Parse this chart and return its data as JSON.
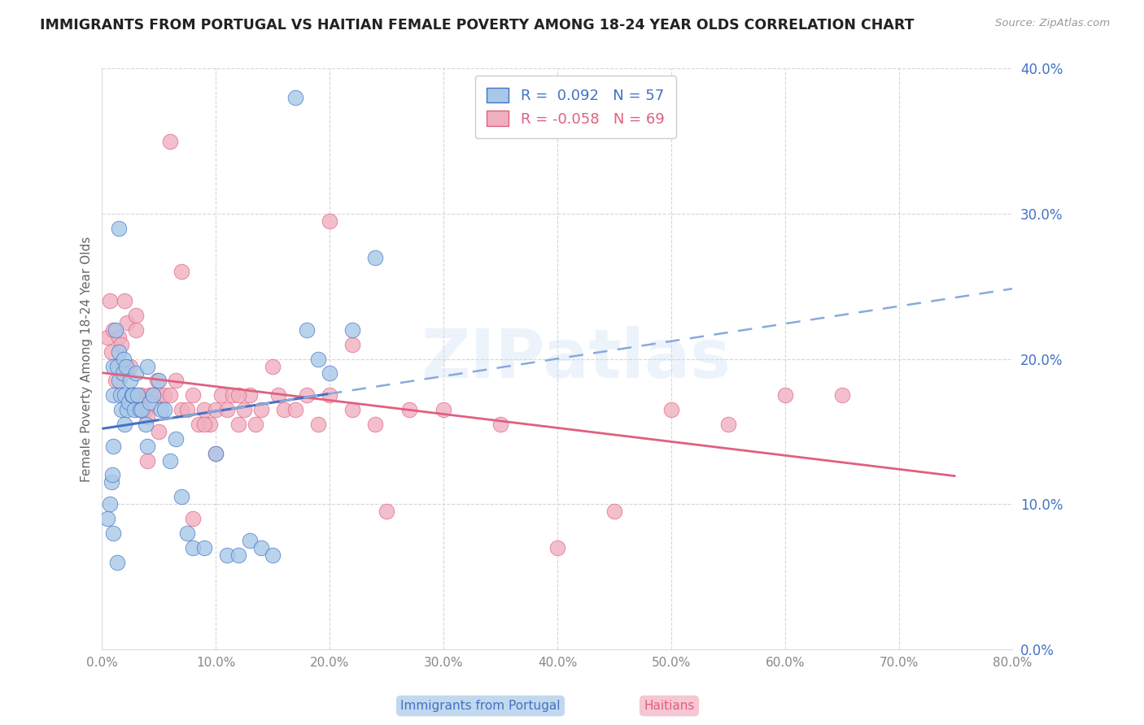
{
  "title": "IMMIGRANTS FROM PORTUGAL VS HAITIAN FEMALE POVERTY AMONG 18-24 YEAR OLDS CORRELATION CHART",
  "source": "Source: ZipAtlas.com",
  "ylabel": "Female Poverty Among 18-24 Year Olds",
  "R_portugal": 0.092,
  "N_portugal": 57,
  "R_haitian": -0.058,
  "N_haitian": 69,
  "xlim": [
    0.0,
    0.8
  ],
  "ylim": [
    0.0,
    0.4
  ],
  "xticks": [
    0.0,
    0.1,
    0.2,
    0.3,
    0.4,
    0.5,
    0.6,
    0.7,
    0.8
  ],
  "yticks": [
    0.0,
    0.1,
    0.2,
    0.3,
    0.4
  ],
  "color_portugal": "#a8c8e8",
  "color_haitian": "#f0b0c0",
  "line_portugal_solid": "#4472c4",
  "line_portugal_dashed": "#88aadd",
  "line_haitian": "#e06080",
  "watermark": "ZIPatlas",
  "background_color": "#ffffff",
  "portugal_x": [
    0.005,
    0.007,
    0.008,
    0.009,
    0.01,
    0.01,
    0.01,
    0.01,
    0.012,
    0.013,
    0.015,
    0.015,
    0.016,
    0.017,
    0.018,
    0.019,
    0.02,
    0.02,
    0.021,
    0.022,
    0.023,
    0.025,
    0.026,
    0.027,
    0.028,
    0.03,
    0.031,
    0.033,
    0.035,
    0.038,
    0.04,
    0.042,
    0.045,
    0.05,
    0.052,
    0.055,
    0.06,
    0.065,
    0.07,
    0.075,
    0.08,
    0.09,
    0.1,
    0.11,
    0.12,
    0.13,
    0.14,
    0.15,
    0.17,
    0.18,
    0.19,
    0.2,
    0.22,
    0.24,
    0.015,
    0.013,
    0.04
  ],
  "portugal_y": [
    0.09,
    0.1,
    0.115,
    0.12,
    0.08,
    0.14,
    0.175,
    0.195,
    0.22,
    0.195,
    0.185,
    0.205,
    0.175,
    0.165,
    0.19,
    0.2,
    0.155,
    0.175,
    0.195,
    0.165,
    0.17,
    0.185,
    0.175,
    0.175,
    0.165,
    0.19,
    0.175,
    0.165,
    0.165,
    0.155,
    0.195,
    0.17,
    0.175,
    0.185,
    0.165,
    0.165,
    0.13,
    0.145,
    0.105,
    0.08,
    0.07,
    0.07,
    0.135,
    0.065,
    0.065,
    0.075,
    0.07,
    0.065,
    0.38,
    0.22,
    0.2,
    0.19,
    0.22,
    0.27,
    0.29,
    0.06,
    0.14
  ],
  "haitian_x": [
    0.005,
    0.007,
    0.008,
    0.01,
    0.012,
    0.015,
    0.017,
    0.019,
    0.02,
    0.022,
    0.025,
    0.027,
    0.03,
    0.032,
    0.035,
    0.038,
    0.04,
    0.042,
    0.045,
    0.048,
    0.05,
    0.055,
    0.06,
    0.065,
    0.07,
    0.075,
    0.08,
    0.085,
    0.09,
    0.095,
    0.1,
    0.105,
    0.11,
    0.115,
    0.12,
    0.125,
    0.13,
    0.135,
    0.14,
    0.15,
    0.155,
    0.16,
    0.17,
    0.18,
    0.19,
    0.2,
    0.22,
    0.24,
    0.25,
    0.27,
    0.3,
    0.35,
    0.4,
    0.45,
    0.5,
    0.55,
    0.6,
    0.65,
    0.2,
    0.22,
    0.1,
    0.12,
    0.08,
    0.09,
    0.06,
    0.07,
    0.04,
    0.05,
    0.03
  ],
  "haitian_y": [
    0.215,
    0.24,
    0.205,
    0.22,
    0.185,
    0.215,
    0.21,
    0.195,
    0.24,
    0.225,
    0.195,
    0.175,
    0.22,
    0.175,
    0.175,
    0.165,
    0.16,
    0.175,
    0.175,
    0.185,
    0.175,
    0.175,
    0.175,
    0.185,
    0.165,
    0.165,
    0.175,
    0.155,
    0.165,
    0.155,
    0.165,
    0.175,
    0.165,
    0.175,
    0.155,
    0.165,
    0.175,
    0.155,
    0.165,
    0.195,
    0.175,
    0.165,
    0.165,
    0.175,
    0.155,
    0.175,
    0.165,
    0.155,
    0.095,
    0.165,
    0.165,
    0.155,
    0.07,
    0.095,
    0.165,
    0.155,
    0.175,
    0.175,
    0.295,
    0.21,
    0.135,
    0.175,
    0.09,
    0.155,
    0.35,
    0.26,
    0.13,
    0.15,
    0.23
  ]
}
